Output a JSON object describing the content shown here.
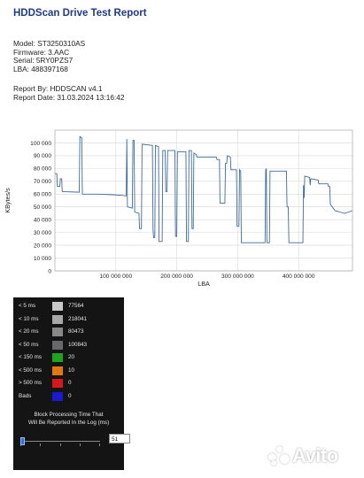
{
  "report": {
    "title": "HDDScan Drive Test Report",
    "model": "Model: ST3250310AS",
    "firmware": "Firmware: 3.AAC",
    "serial": "Serial: 5RY0PZS7",
    "lba": "LBA: 488397168",
    "report_by": "Report By: HDDSCAN v4.1",
    "report_date": "Report Date: 31.03.2024 13:16:42"
  },
  "chart_data": {
    "type": "line",
    "xlabel": "LBA",
    "ylabel": "KBytes/s",
    "xlim": [
      0,
      488397168
    ],
    "ylim": [
      0,
      110000
    ],
    "grid": true,
    "yticks": [
      0,
      10000,
      20000,
      30000,
      40000,
      50000,
      60000,
      70000,
      80000,
      90000,
      100000
    ],
    "ytick_labels": [
      "0",
      "10 000",
      "20 000",
      "30 000",
      "40 000",
      "50 000",
      "60 000",
      "70 000",
      "80 000",
      "90 000",
      "100 000"
    ],
    "xticks": [
      100000000,
      200000000,
      300000000,
      400000000
    ],
    "xtick_labels": [
      "100 000 000",
      "200 000 000",
      "300 000 000",
      "400 000 000"
    ],
    "series": [
      {
        "color": "#3e6b9a",
        "points": [
          [
            0,
            76000
          ],
          [
            3000000,
            76000
          ],
          [
            4000000,
            66000
          ],
          [
            8000000,
            66000
          ],
          [
            9000000,
            72000
          ],
          [
            11000000,
            72000
          ],
          [
            12000000,
            62000
          ],
          [
            40000000,
            61500
          ],
          [
            41000000,
            105000
          ],
          [
            44000000,
            104000
          ],
          [
            45000000,
            60000
          ],
          [
            70000000,
            60000
          ],
          [
            95000000,
            59500
          ],
          [
            110000000,
            59000
          ],
          [
            117000000,
            58500
          ],
          [
            118000000,
            103000
          ],
          [
            119000000,
            50000
          ],
          [
            127000000,
            49000
          ],
          [
            128000000,
            102000
          ],
          [
            130000000,
            102000
          ],
          [
            131000000,
            46000
          ],
          [
            138000000,
            45000
          ],
          [
            139000000,
            33000
          ],
          [
            142000000,
            33000
          ],
          [
            143000000,
            99000
          ],
          [
            160000000,
            98000
          ],
          [
            161000000,
            32000
          ],
          [
            162000000,
            26000
          ],
          [
            164000000,
            26000
          ],
          [
            165000000,
            98000
          ],
          [
            170000000,
            97000
          ],
          [
            171000000,
            23000
          ],
          [
            176000000,
            23000
          ],
          [
            177000000,
            94000
          ],
          [
            181000000,
            94000
          ],
          [
            182000000,
            62000
          ],
          [
            184000000,
            62000
          ],
          [
            185000000,
            94000
          ],
          [
            197000000,
            94000
          ],
          [
            198000000,
            27000
          ],
          [
            200000000,
            27000
          ],
          [
            201000000,
            93000
          ],
          [
            215000000,
            93000
          ],
          [
            216000000,
            23000
          ],
          [
            219000000,
            23000
          ],
          [
            220000000,
            94000
          ],
          [
            224000000,
            94000
          ],
          [
            225000000,
            33000
          ],
          [
            227000000,
            33000
          ],
          [
            228000000,
            92000
          ],
          [
            232000000,
            91000
          ],
          [
            233000000,
            89000
          ],
          [
            265000000,
            89000
          ],
          [
            266000000,
            87000
          ],
          [
            270000000,
            87000
          ],
          [
            271000000,
            53000
          ],
          [
            279000000,
            53000
          ],
          [
            280000000,
            84000
          ],
          [
            282000000,
            84000
          ],
          [
            283000000,
            90000
          ],
          [
            288000000,
            89000
          ],
          [
            289000000,
            79000
          ],
          [
            298000000,
            79000
          ],
          [
            299000000,
            35000
          ],
          [
            302000000,
            35000
          ],
          [
            303000000,
            79000
          ],
          [
            305000000,
            78000
          ],
          [
            306000000,
            22000
          ],
          [
            345000000,
            22000
          ],
          [
            346000000,
            79000
          ],
          [
            347000000,
            80000
          ],
          [
            348000000,
            22000
          ],
          [
            352000000,
            22000
          ],
          [
            353000000,
            78000
          ],
          [
            380000000,
            78000
          ],
          [
            381000000,
            50000
          ],
          [
            383000000,
            50000
          ],
          [
            384000000,
            22000
          ],
          [
            407000000,
            22000
          ],
          [
            408000000,
            67000
          ],
          [
            409000000,
            57000
          ],
          [
            410000000,
            74000
          ],
          [
            418000000,
            73000
          ],
          [
            419000000,
            67000
          ],
          [
            420000000,
            72000
          ],
          [
            432000000,
            71000
          ],
          [
            433000000,
            68000
          ],
          [
            448000000,
            68000
          ],
          [
            449000000,
            66000
          ],
          [
            451000000,
            66000
          ],
          [
            452000000,
            52000
          ],
          [
            460000000,
            47000
          ],
          [
            468000000,
            46000
          ],
          [
            475000000,
            45000
          ],
          [
            482000000,
            46000
          ],
          [
            488000000,
            47000
          ]
        ]
      }
    ]
  },
  "legend": {
    "rows": [
      {
        "label": "< 5 ms",
        "value": "77564",
        "color": "#c8c8c8"
      },
      {
        "label": "< 10 ms",
        "value": "218041",
        "color": "#a8a8a8"
      },
      {
        "label": "< 20 ms",
        "value": "80473",
        "color": "#888888"
      },
      {
        "label": "< 50 ms",
        "value": "100843",
        "color": "#686868"
      },
      {
        "label": "< 150 ms",
        "value": "20",
        "color": "#1fa31f"
      },
      {
        "label": "< 500 ms",
        "value": "10",
        "color": "#e07a10"
      },
      {
        "label": "> 500 ms",
        "value": "0",
        "color": "#d81818"
      },
      {
        "label": "Bads",
        "value": "0",
        "color": "#1a1ad0"
      }
    ],
    "caption_line1": "Block Processing Time That",
    "caption_line2": "Will Be Reported In the Log (ms)",
    "slider_value": "51"
  },
  "watermark": {
    "text": "Avito"
  }
}
